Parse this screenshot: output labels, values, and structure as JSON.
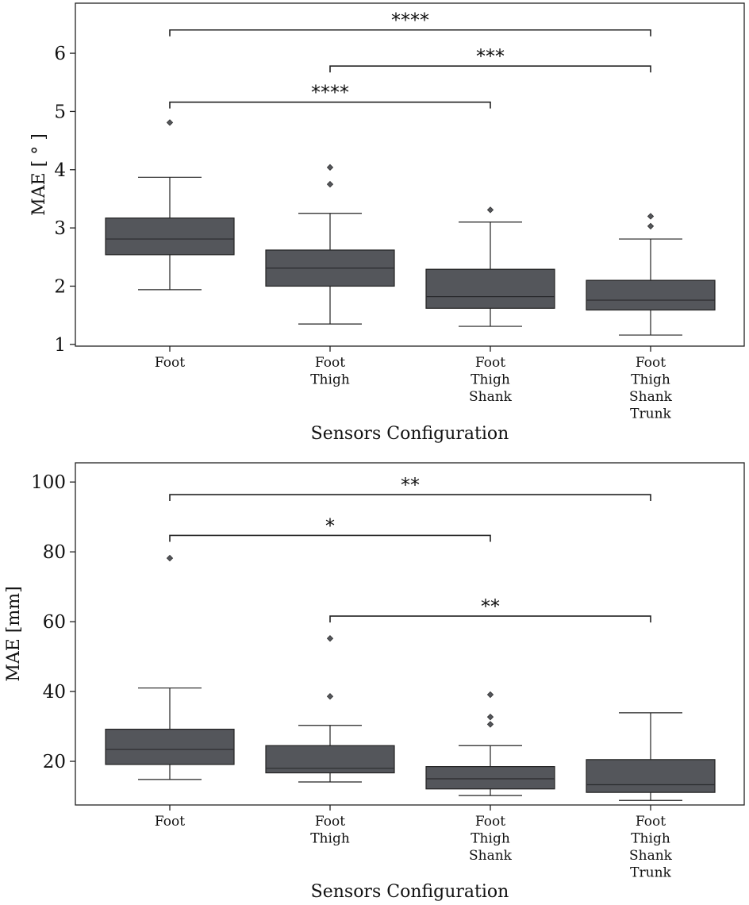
{
  "colors": {
    "box_fill": "#54565b",
    "line": "#222222",
    "frame": "#222222",
    "background": "#ffffff"
  },
  "chart_data": [
    {
      "type": "box",
      "title": "",
      "xlabel": "Sensors Configuration",
      "ylabel": "MAE [ ° ]",
      "ylim": [
        0.97,
        6.86
      ],
      "yticks": [
        1,
        2,
        3,
        4,
        5,
        6
      ],
      "categories": [
        [
          "Foot"
        ],
        [
          "Foot",
          "Thigh"
        ],
        [
          "Foot",
          "Thigh",
          "Shank"
        ],
        [
          "Foot",
          "Thigh",
          "Shank",
          "Trunk"
        ]
      ],
      "boxes": [
        {
          "whisker_low": 1.94,
          "q1": 2.54,
          "median": 2.81,
          "q3": 3.17,
          "whisker_high": 3.87,
          "outliers": [
            4.81
          ]
        },
        {
          "whisker_low": 1.35,
          "q1": 2.0,
          "median": 2.31,
          "q3": 2.62,
          "whisker_high": 3.25,
          "outliers": [
            4.04,
            3.75
          ]
        },
        {
          "whisker_low": 1.31,
          "q1": 1.62,
          "median": 1.82,
          "q3": 2.29,
          "whisker_high": 3.1,
          "outliers": [
            3.31
          ]
        },
        {
          "whisker_low": 1.16,
          "q1": 1.59,
          "median": 1.76,
          "q3": 2.1,
          "whisker_high": 2.81,
          "outliers": [
            3.2,
            3.03
          ]
        }
      ],
      "significance": [
        {
          "from": 0,
          "to": 3,
          "y": 6.4,
          "label": "****"
        },
        {
          "from": 1,
          "to": 3,
          "y": 5.78,
          "label": "***"
        },
        {
          "from": 0,
          "to": 2,
          "y": 5.16,
          "label": "****"
        }
      ]
    },
    {
      "type": "box",
      "title": "",
      "xlabel": "Sensors Configuration",
      "ylabel": "MAE [mm]",
      "ylim": [
        7.5,
        105.5
      ],
      "yticks": [
        20,
        40,
        60,
        80,
        100
      ],
      "categories": [
        [
          "Foot"
        ],
        [
          "Foot",
          "Thigh"
        ],
        [
          "Foot",
          "Thigh",
          "Shank"
        ],
        [
          "Foot",
          "Thigh",
          "Shank",
          "Trunk"
        ]
      ],
      "boxes": [
        {
          "whisker_low": 14.8,
          "q1": 19.1,
          "median": 23.4,
          "q3": 29.2,
          "whisker_high": 41.0,
          "outliers": [
            78.2
          ]
        },
        {
          "whisker_low": 14.1,
          "q1": 16.7,
          "median": 18.0,
          "q3": 24.5,
          "whisker_high": 30.3,
          "outliers": [
            55.2,
            38.6
          ]
        },
        {
          "whisker_low": 10.2,
          "q1": 12.1,
          "median": 15.0,
          "q3": 18.5,
          "whisker_high": 24.5,
          "outliers": [
            39.1,
            32.7,
            30.6
          ]
        },
        {
          "whisker_low": 8.8,
          "q1": 11.1,
          "median": 13.3,
          "q3": 20.5,
          "whisker_high": 33.9,
          "outliers": []
        }
      ],
      "significance": [
        {
          "from": 0,
          "to": 3,
          "y": 96.4,
          "label": "**"
        },
        {
          "from": 0,
          "to": 2,
          "y": 84.7,
          "label": "*"
        },
        {
          "from": 1,
          "to": 3,
          "y": 61.6,
          "label": "**"
        }
      ]
    }
  ]
}
